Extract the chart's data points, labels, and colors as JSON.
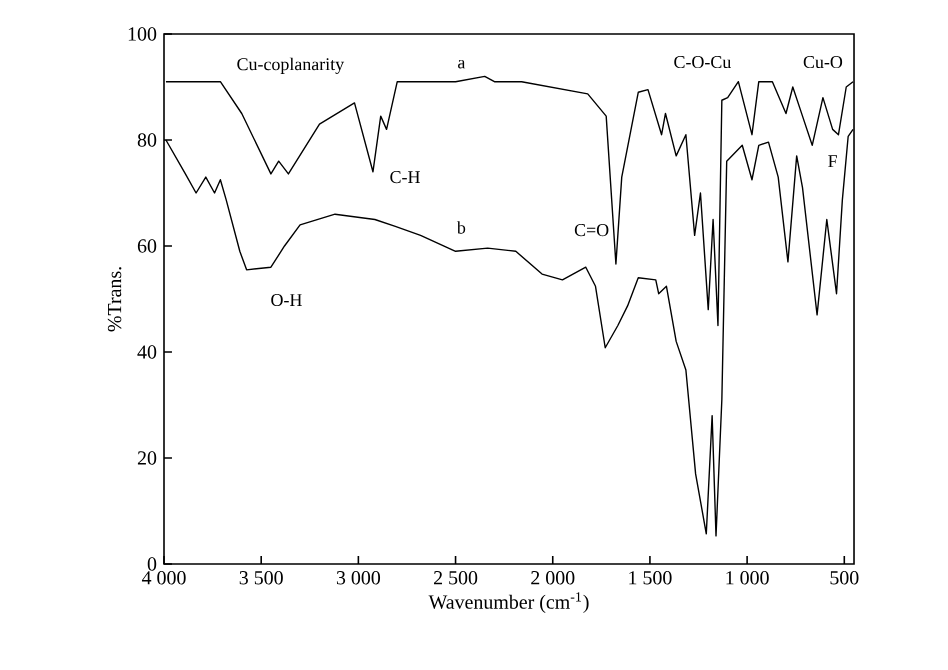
{
  "chart_data": {
    "type": "line",
    "xlabel": "Wavenumber (cm$^{-1}$)",
    "ylabel": "%Trans.",
    "series": [
      {
        "color": "#000000",
        "x": [
          3990,
          3710,
          3600,
          3450,
          3410,
          3360,
          3200,
          3020,
          2925,
          2885,
          2855,
          2800,
          2500,
          2350,
          2300,
          2160,
          1820,
          1725,
          1675,
          1645,
          1560,
          1510,
          1440,
          1420,
          1365,
          1315,
          1270,
          1240,
          1200,
          1175,
          1150,
          1130,
          1100,
          1045,
          975,
          940,
          870,
          800,
          765,
          715,
          665,
          610,
          560,
          530,
          490,
          455
        ],
        "values": [
          91,
          91,
          85,
          73.6,
          76,
          73.6,
          83,
          87,
          74,
          84.5,
          82,
          91,
          91,
          92,
          91,
          91,
          88.7,
          84.5,
          56.6,
          73,
          89,
          89.5,
          81,
          85,
          77,
          81,
          62,
          70,
          48,
          65,
          45,
          87.5,
          88,
          91,
          81,
          91,
          91,
          85,
          90,
          84.5,
          79,
          88,
          82,
          81,
          90,
          91
        ]
      },
      {
        "color": "#000000",
        "x": [
          3990,
          3890,
          3835,
          3785,
          3740,
          3710,
          3680,
          3610,
          3575,
          3450,
          3380,
          3300,
          3120,
          2915,
          2810,
          2680,
          2500,
          2335,
          2190,
          2055,
          1950,
          1830,
          1780,
          1730,
          1665,
          1615,
          1560,
          1470,
          1455,
          1415,
          1365,
          1315,
          1265,
          1210,
          1180,
          1160,
          1130,
          1105,
          1025,
          975,
          940,
          890,
          840,
          790,
          745,
          715,
          640,
          590,
          540,
          510,
          480,
          455
        ],
        "values": [
          80,
          73.6,
          70,
          73,
          70,
          72.5,
          68.7,
          59,
          55.5,
          56,
          60,
          64,
          66,
          65,
          63.7,
          62,
          59,
          59.6,
          59,
          54.7,
          53.6,
          56,
          52.4,
          40.8,
          45,
          48.7,
          54,
          53.6,
          51,
          52.4,
          42,
          36.6,
          17,
          5.7,
          28,
          5.3,
          31,
          76,
          79,
          72.5,
          79,
          79.6,
          73,
          57,
          77,
          71,
          47,
          65,
          51,
          68.7,
          80.7,
          82
        ]
      }
    ],
    "xlim": [
      4000,
      450
    ],
    "ylim": [
      0,
      100
    ],
    "xticks": [
      {
        "value": 4000,
        "label": "4 000"
      },
      {
        "value": 3500,
        "label": "3 500"
      },
      {
        "value": 3000,
        "label": "3 000"
      },
      {
        "value": 2500,
        "label": "2 500"
      },
      {
        "value": 2000,
        "label": "2 000"
      },
      {
        "value": 1500,
        "label": "1 500"
      },
      {
        "value": 1000,
        "label": "1 000"
      },
      500
    ],
    "yticks": [
      0,
      20,
      40,
      60,
      80,
      100
    ],
    "annotations": [
      "Cu-coplanarity",
      "a",
      "C-H",
      "b",
      "O-H",
      "C=O",
      "C-O-Cu",
      "Cu-O",
      "F"
    ]
  }
}
